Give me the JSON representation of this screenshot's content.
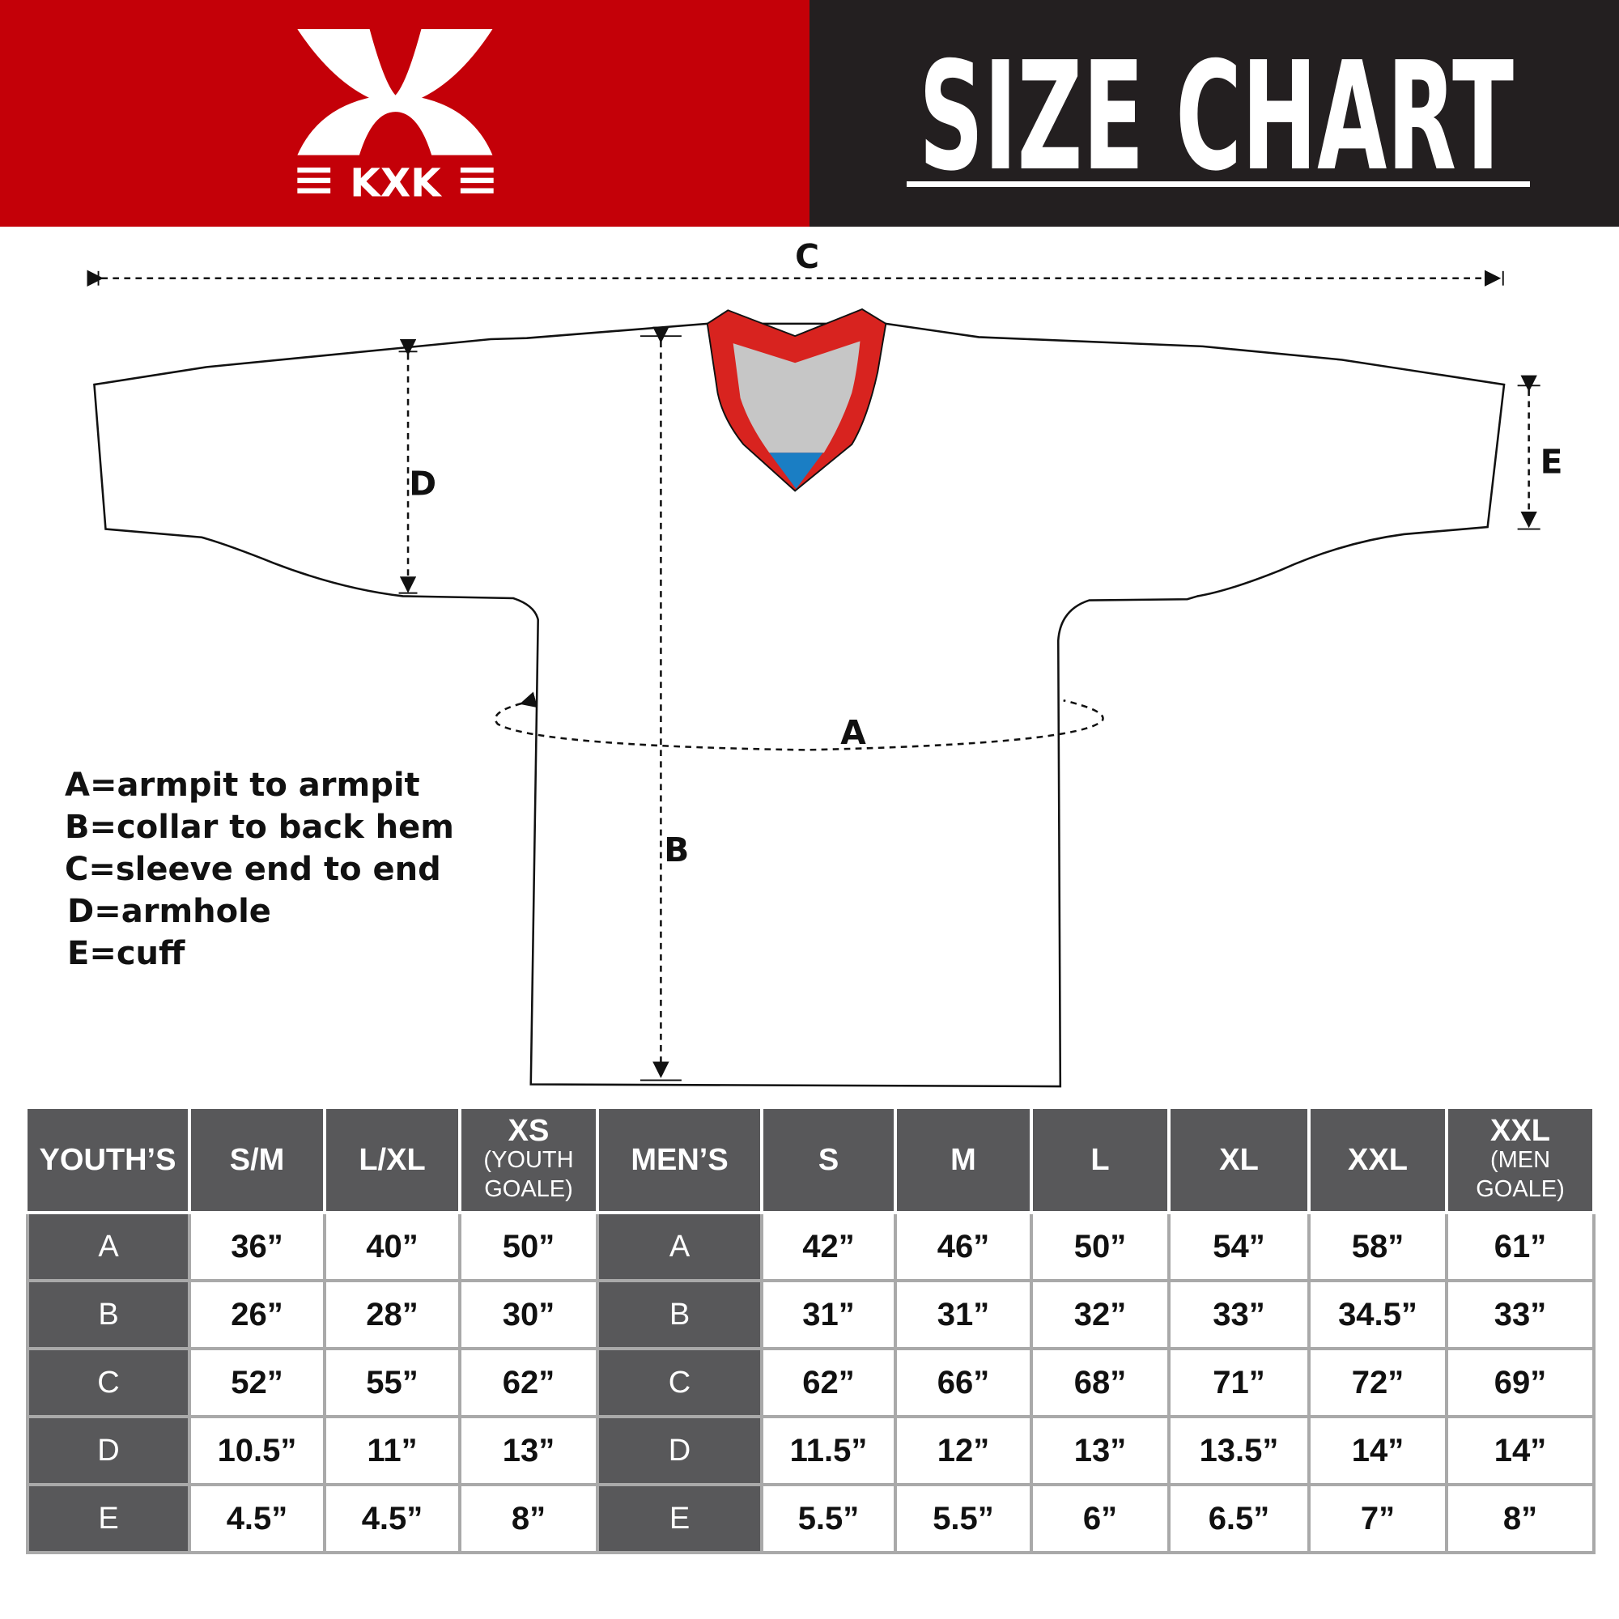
{
  "brand": {
    "logo_text": "KXK",
    "colors": {
      "red": "#c40008",
      "dark": "#231f20",
      "table_header": "#58585a",
      "collar_red": "#d8231f",
      "collar_gray": "#c6c6c6",
      "collar_blue": "#1a7ec4"
    }
  },
  "header": {
    "title": "SIZE CHART"
  },
  "diagram": {
    "labels": {
      "a": "A",
      "b": "B",
      "c": "C",
      "d": "D",
      "e": "E"
    },
    "legend": [
      "A=armpit to armpit",
      "B=collar to back hem",
      "C=sleeve end to end",
      "D=armhole",
      "E=cuff"
    ]
  },
  "table": {
    "youth": {
      "header": "YOUTH’S",
      "sizes": [
        {
          "label": "S/M"
        },
        {
          "label": "L/XL"
        },
        {
          "label": "XS",
          "sub": "(YOUTH GOALE)"
        }
      ]
    },
    "men": {
      "header": "MEN’S",
      "sizes": [
        {
          "label": "S"
        },
        {
          "label": "M"
        },
        {
          "label": "L"
        },
        {
          "label": "XL"
        },
        {
          "label": "XXL"
        },
        {
          "label": "XXL",
          "sub": "(MEN GOALE)"
        }
      ]
    },
    "rows": [
      {
        "label": "A",
        "youth": [
          "36”",
          "40”",
          "50”"
        ],
        "men": [
          "42”",
          "46”",
          "50”",
          "54”",
          "58”",
          "61”"
        ]
      },
      {
        "label": "B",
        "youth": [
          "26”",
          "28”",
          "30”"
        ],
        "men": [
          "31”",
          "31”",
          "32”",
          "33”",
          "34.5”",
          "33”"
        ]
      },
      {
        "label": "C",
        "youth": [
          "52”",
          "55”",
          "62”"
        ],
        "men": [
          "62”",
          "66”",
          "68”",
          "71”",
          "72”",
          "69”"
        ]
      },
      {
        "label": "D",
        "youth": [
          "10.5”",
          "11”",
          "13”"
        ],
        "men": [
          "11.5”",
          "12”",
          "13”",
          "13.5”",
          "14”",
          "14”"
        ]
      },
      {
        "label": "E",
        "youth": [
          "4.5”",
          "4.5”",
          "8”"
        ],
        "men": [
          "5.5”",
          "5.5”",
          "6”",
          "6.5”",
          "7”",
          "8”"
        ]
      }
    ]
  }
}
